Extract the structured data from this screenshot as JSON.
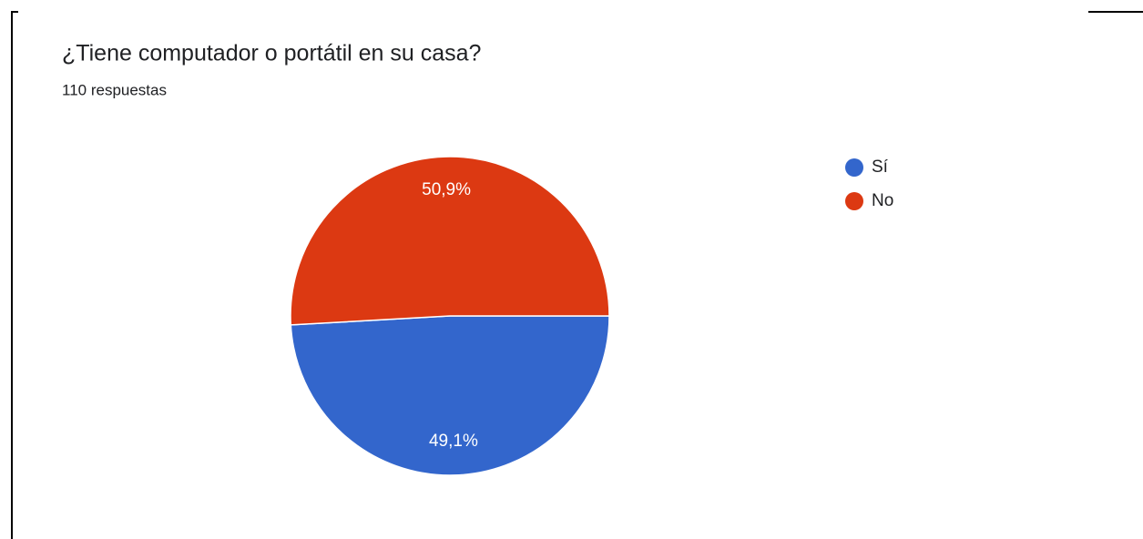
{
  "chart_data": {
    "type": "pie",
    "title": "¿Tiene computador o portátil en su casa?",
    "subtitle": "110 respuestas",
    "categories": [
      "Sí",
      "No"
    ],
    "values": [
      49.1,
      50.9
    ],
    "value_labels": [
      "49,1%",
      "50,9%"
    ],
    "colors": [
      "#3366cc",
      "#dc3912"
    ],
    "legend": "right"
  }
}
